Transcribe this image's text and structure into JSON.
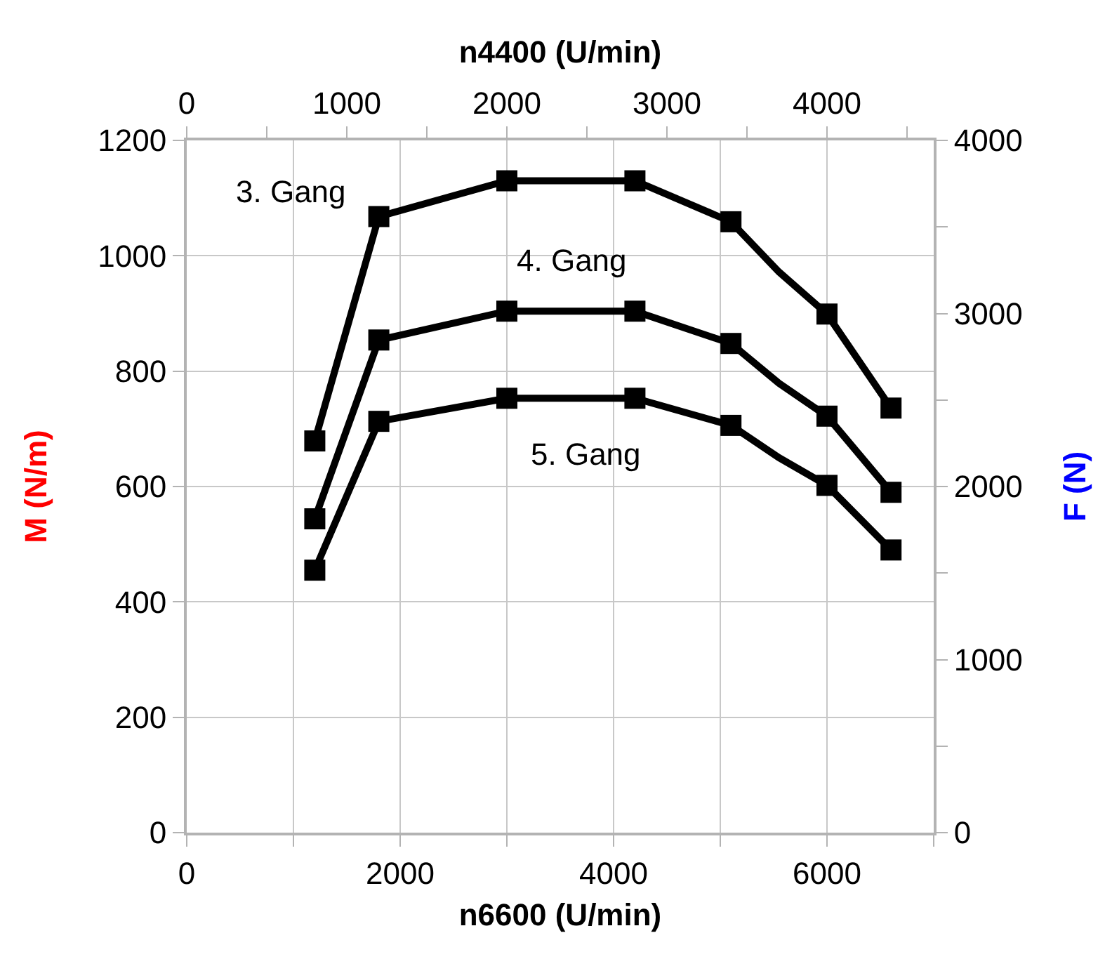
{
  "chart_data": {
    "type": "line",
    "xlabel": "n6600 (U/min)",
    "ylabel": "M (N/m)",
    "y2label": "F (N)",
    "x2label": "n4400 (U/min)",
    "x": [
      1200,
      1800,
      3000,
      4200,
      5100,
      5550,
      6000,
      6600
    ],
    "series": [
      {
        "name": "3. Gang",
        "color": "#000000",
        "values": [
          679,
          1068,
          1130,
          1130,
          1059,
          972,
          899,
          736
        ]
      },
      {
        "name": "4. Gang",
        "color": "#000000",
        "values": [
          544,
          854,
          904,
          904,
          848,
          779,
          722,
          590
        ]
      },
      {
        "name": "5. Gang",
        "color": "#000000",
        "values": [
          455,
          713,
          753,
          753,
          706,
          650,
          602,
          490
        ]
      }
    ],
    "xlim": [
      0,
      7000
    ],
    "xticks": [
      0,
      {
        "value": 1000,
        "label": null
      },
      2000,
      {
        "value": 3000,
        "label": null
      },
      4000,
      {
        "value": 5000,
        "label": null
      },
      6000,
      {
        "value": 7000,
        "label": null
      }
    ],
    "x2lim": [
      0,
      4667
    ],
    "x2ticks": [
      0,
      {
        "value": 500,
        "label": null
      },
      1000,
      {
        "value": 1500,
        "label": null
      },
      2000,
      {
        "value": 2500,
        "label": null
      },
      3000,
      {
        "value": 3500,
        "label": null
      },
      4000,
      {
        "value": 4500,
        "label": null
      }
    ],
    "ylim": [
      0,
      1200
    ],
    "yticks": [
      0,
      200,
      400,
      600,
      800,
      1000,
      1200
    ],
    "y2lim": [
      0,
      4000
    ],
    "y2ticks": [
      0,
      {
        "value": 500,
        "label": null
      },
      1000,
      {
        "value": 1500,
        "label": null
      },
      2000,
      {
        "value": 2500,
        "label": null
      },
      3000,
      {
        "value": 3500,
        "label": null
      },
      4000
    ],
    "grid": true,
    "legend": false,
    "marker": "square",
    "line_style": "solid"
  }
}
